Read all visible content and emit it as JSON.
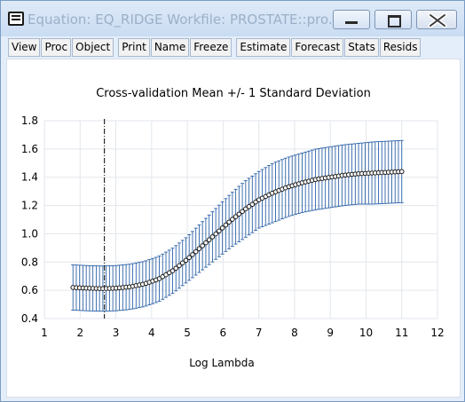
{
  "window": {
    "title": "Equation: EQ_RIDGE   Workfile: PROSTATE::pro..."
  },
  "toolbar": {
    "buttons": [
      "View",
      "Proc",
      "Object",
      "Print",
      "Name",
      "Freeze",
      "Estimate",
      "Forecast",
      "Stats",
      "Resids"
    ]
  },
  "chart_data": {
    "type": "line",
    "title": "Cross-validation Mean +/- 1 Standard Deviation",
    "xlabel": "Log Lambda",
    "ylabel": "",
    "xlim": [
      1,
      12
    ],
    "ylim": [
      0.4,
      1.8
    ],
    "xticks": [
      "1",
      "2",
      "3",
      "4",
      "5",
      "6",
      "7",
      "8",
      "9",
      "10",
      "11",
      "12"
    ],
    "yticks": [
      "0.4",
      "0.6",
      "0.8",
      "1.0",
      "1.2",
      "1.4",
      "1.6",
      "1.8"
    ],
    "grid": true,
    "selected_log_lambda": 2.68,
    "x": [
      1.8,
      2.2,
      2.6,
      3.0,
      3.4,
      3.8,
      4.2,
      4.6,
      5.0,
      5.4,
      5.8,
      6.2,
      6.6,
      7.0,
      7.4,
      7.8,
      8.2,
      8.6,
      9.0,
      9.4,
      9.8,
      10.2,
      10.6,
      11.0
    ],
    "series": [
      {
        "values": [
          0.62,
          0.615,
          0.612,
          0.615,
          0.625,
          0.645,
          0.68,
          0.74,
          0.82,
          0.91,
          1.0,
          1.09,
          1.17,
          1.24,
          1.29,
          1.33,
          1.36,
          1.385,
          1.4,
          1.415,
          1.425,
          1.43,
          1.435,
          1.44
        ]
      },
      {
        "values": [
          0.78,
          0.775,
          0.772,
          0.775,
          0.785,
          0.805,
          0.84,
          0.9,
          0.98,
          1.08,
          1.18,
          1.28,
          1.37,
          1.44,
          1.5,
          1.54,
          1.57,
          1.6,
          1.615,
          1.63,
          1.64,
          1.65,
          1.655,
          1.66
        ]
      },
      {
        "values": [
          0.46,
          0.455,
          0.452,
          0.455,
          0.465,
          0.485,
          0.52,
          0.58,
          0.66,
          0.74,
          0.82,
          0.9,
          0.97,
          1.04,
          1.08,
          1.12,
          1.15,
          1.17,
          1.185,
          1.2,
          1.21,
          1.21,
          1.215,
          1.22
        ]
      }
    ],
    "colors": {
      "mean_marker": "#1a1a1a",
      "error_bars": "#2c62a8",
      "grid": "#e2e6ec",
      "vline": "#000000"
    }
  }
}
